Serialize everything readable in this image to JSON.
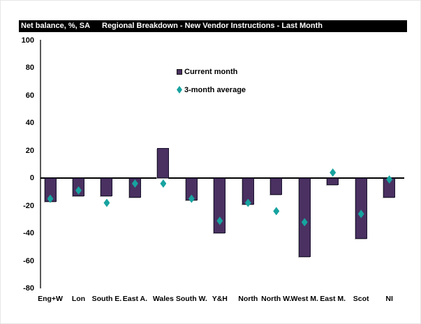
{
  "header": {
    "unit_label": "Net balance, %, SA",
    "title": "Regional Breakdown - New Vendor Instructions - Last Month"
  },
  "legend": {
    "items": [
      {
        "label": "Current month",
        "marker": "square"
      },
      {
        "label": "3-month average",
        "marker": "diamond"
      }
    ]
  },
  "colors": {
    "bar_fill": "#4A3161",
    "bar_border": "#1B1330",
    "diamond": "#17A3A0",
    "header_bg": "#000000",
    "header_text": "#FFFFFF",
    "axis": "#595959",
    "zero_line": "#000000"
  },
  "chart_data": {
    "type": "bar",
    "title": "Regional Breakdown - New Vendor Instructions - Last Month",
    "ylabel": "Net balance, %, SA",
    "categories": [
      "Eng+W",
      "Lon",
      "South E.",
      "East A.",
      "Wales",
      "South W.",
      "Y&H",
      "North",
      "North W.",
      "West M.",
      "East M.",
      "Scot",
      "NI"
    ],
    "series": [
      {
        "name": "Current month",
        "type": "bar",
        "color": "#4A3161",
        "values": [
          -17,
          -13,
          -13,
          -14,
          22,
          -16,
          -40,
          -19,
          -12,
          -57,
          -5,
          -44,
          -14
        ]
      },
      {
        "name": "3-month average",
        "type": "scatter",
        "marker": "diamond",
        "color": "#17A3A0",
        "values": [
          -15,
          -9,
          -18,
          -4,
          -4,
          -15,
          -31,
          -18,
          -24,
          -32,
          4,
          -26,
          -1
        ]
      }
    ],
    "ylim": [
      -80,
      100
    ],
    "ytick_step": 20,
    "grid": false,
    "legend_position": "inside-top-center"
  }
}
